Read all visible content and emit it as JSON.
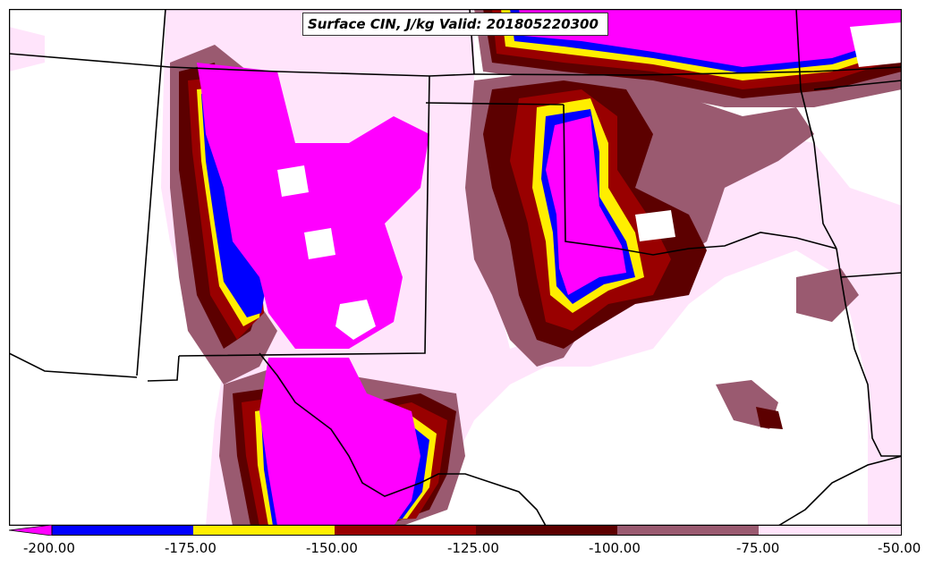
{
  "title": "Surface CIN, J/kg Valid: 201805220300",
  "colorbar": {
    "ticks": [
      "-200.00",
      "-175.00",
      "-150.00",
      "-125.00",
      "-100.00",
      "-75.00",
      "-50.00"
    ],
    "bins": [
      {
        "range": "< -200",
        "color": "#ff00ff"
      },
      {
        "range": "-200 to -175",
        "color": "#0000ff"
      },
      {
        "range": "-175 to -150",
        "color": "#ffee00"
      },
      {
        "range": "-150 to -125",
        "color": "#990000"
      },
      {
        "range": "-125 to -100",
        "color": "#5c0000"
      },
      {
        "range": "-100 to -75",
        "color": "#9a5a70"
      },
      {
        "range": "-75 to -50",
        "color": "#ffe4fb"
      }
    ]
  }
}
